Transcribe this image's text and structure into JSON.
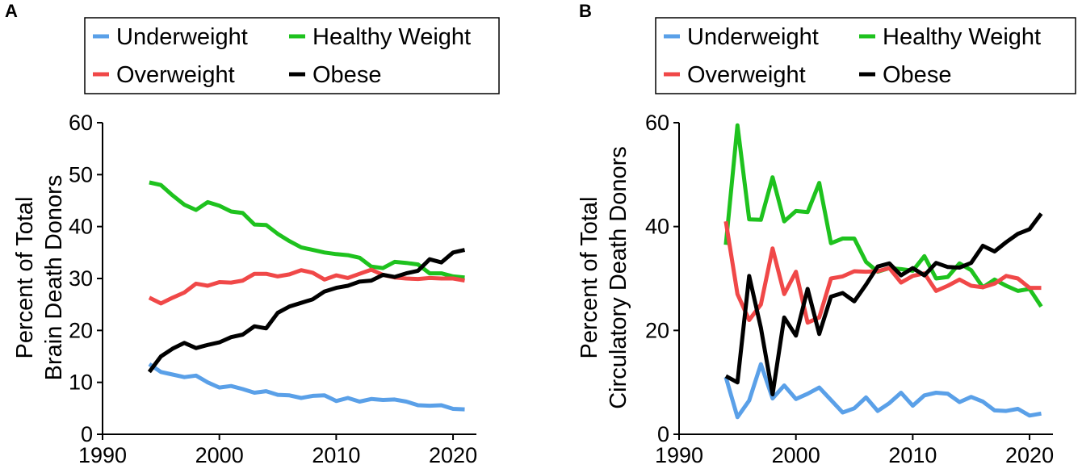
{
  "panels": [
    "A",
    "B"
  ],
  "chart_data": [
    {
      "type": "line",
      "panel": "A",
      "ylabel": [
        "Percent of Total",
        "Brain Death Donors"
      ],
      "xlabel": "",
      "xlim": [
        1990,
        2022
      ],
      "ylim": [
        0,
        60
      ],
      "xticks": [
        "1990",
        "2000",
        "2010",
        "2020"
      ],
      "yticks": [
        "0",
        "10",
        "20",
        "30",
        "40",
        "50",
        "60"
      ],
      "legend": [
        "Underweight",
        "Healthy Weight",
        "Overweight",
        "Obese"
      ],
      "x": [
        1994,
        1995,
        1996,
        1997,
        1998,
        1999,
        2000,
        2001,
        2002,
        2003,
        2004,
        2005,
        2006,
        2007,
        2008,
        2009,
        2010,
        2011,
        2012,
        2013,
        2014,
        2015,
        2016,
        2017,
        2018,
        2019,
        2020,
        2021
      ],
      "series": [
        {
          "name": "Underweight",
          "color": "#5aa0e8",
          "values": [
            13.5,
            12,
            11.5,
            11,
            11.3,
            10,
            9,
            9.3,
            8.7,
            8,
            8.3,
            7.6,
            7.5,
            7,
            7.4,
            7.5,
            6.4,
            7,
            6.3,
            6.8,
            6.6,
            6.7,
            6.3,
            5.6,
            5.5,
            5.6,
            4.9,
            4.8
          ]
        },
        {
          "name": "Healthy Weight",
          "color": "#1ec21e",
          "values": [
            48.5,
            48,
            46,
            44.2,
            43.2,
            44.7,
            44,
            42.9,
            42.6,
            40.4,
            40.3,
            38.6,
            37.2,
            36,
            35.5,
            35,
            34.7,
            34.5,
            34,
            32.3,
            32,
            33.2,
            33,
            32.7,
            31,
            31,
            30.4,
            30.2
          ]
        },
        {
          "name": "Overweight",
          "color": "#f04848",
          "values": [
            26.3,
            25.2,
            26.3,
            27.3,
            29,
            28.6,
            29.3,
            29.2,
            29.6,
            30.9,
            30.9,
            30.4,
            30.8,
            31.6,
            31.1,
            29.8,
            30.6,
            30.1,
            30.9,
            31.7,
            30.7,
            30.2,
            30,
            29.9,
            30.1,
            30,
            30,
            29.6
          ]
        },
        {
          "name": "Obese",
          "color": "#000000",
          "values": [
            12,
            15,
            16.5,
            17.6,
            16.6,
            17.2,
            17.7,
            18.7,
            19.2,
            20.8,
            20.4,
            23.4,
            24.6,
            25.3,
            26,
            27.5,
            28.2,
            28.6,
            29.4,
            29.6,
            30.7,
            30.3,
            31,
            31.5,
            33.7,
            33.1,
            35,
            35.5
          ]
        }
      ]
    },
    {
      "type": "line",
      "panel": "B",
      "ylabel": [
        "Percent of Total",
        "Circulatory Death Donors"
      ],
      "xlabel": "",
      "xlim": [
        1990,
        2022
      ],
      "ylim": [
        0,
        60
      ],
      "xticks": [
        "1990",
        "2000",
        "2010",
        "2020"
      ],
      "yticks": [
        "0",
        "20",
        "40",
        "60"
      ],
      "legend": [
        "Underweight",
        "Healthy Weight",
        "Overweight",
        "Obese"
      ],
      "x": [
        1994,
        1995,
        1996,
        1997,
        1998,
        1999,
        2000,
        2001,
        2002,
        2003,
        2004,
        2005,
        2006,
        2007,
        2008,
        2009,
        2010,
        2011,
        2012,
        2013,
        2014,
        2015,
        2016,
        2017,
        2018,
        2019,
        2020,
        2021
      ],
      "series": [
        {
          "name": "Underweight",
          "color": "#5aa0e8",
          "values": [
            11,
            3.3,
            6.5,
            13.5,
            6.9,
            9.4,
            6.8,
            7.8,
            9,
            6.6,
            4.2,
            5,
            7.1,
            4.5,
            6,
            8,
            5.5,
            7.5,
            8,
            7.8,
            6.2,
            7.2,
            6.3,
            4.6,
            4.5,
            4.9,
            3.6,
            4
          ]
        },
        {
          "name": "Healthy Weight",
          "color": "#1ec21e",
          "values": [
            36.5,
            59.5,
            41.4,
            41.3,
            49.5,
            41,
            43,
            42.8,
            48.4,
            36.8,
            37.7,
            37.7,
            33.2,
            31.3,
            32,
            31.8,
            31.5,
            34.3,
            30,
            30.3,
            32.9,
            31.6,
            28.3,
            29.8,
            28.6,
            27.6,
            28,
            24.6
          ]
        },
        {
          "name": "Overweight",
          "color": "#f04848",
          "values": [
            41,
            27,
            22,
            25,
            35.8,
            27,
            31.3,
            21.5,
            22.5,
            30,
            30.4,
            31.4,
            31.3,
            31.4,
            32,
            29.2,
            30.5,
            31,
            27.6,
            28.6,
            29.8,
            28.6,
            28.3,
            29,
            30.5,
            30,
            28.2,
            28.2
          ]
        },
        {
          "name": "Obese",
          "color": "#000000",
          "values": [
            11.2,
            10,
            30.5,
            20.5,
            7.7,
            22.5,
            19,
            28,
            19.3,
            26.5,
            27.2,
            25.6,
            28.8,
            32.3,
            32.9,
            30.6,
            32,
            30.6,
            33,
            32.2,
            32.1,
            33,
            36.3,
            35.2,
            37,
            38.6,
            39.5,
            42.5
          ]
        }
      ]
    }
  ]
}
